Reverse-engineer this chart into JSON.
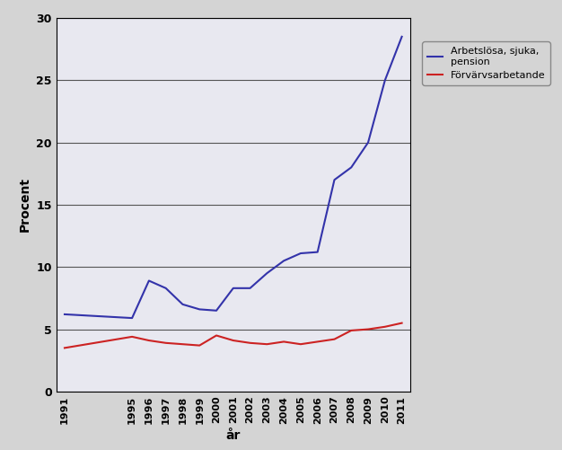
{
  "years": [
    1991,
    1995,
    1996,
    1997,
    1998,
    1999,
    2000,
    2001,
    2002,
    2003,
    2004,
    2005,
    2006,
    2007,
    2008,
    2009,
    2010,
    2011
  ],
  "arbetslosa": [
    6.2,
    5.9,
    8.9,
    8.3,
    7.0,
    6.6,
    6.5,
    8.3,
    8.3,
    9.5,
    10.5,
    11.1,
    11.2,
    17.0,
    18.0,
    20.0,
    25.0,
    28.5
  ],
  "forvarvsarbetande": [
    3.5,
    4.4,
    4.1,
    3.9,
    3.8,
    3.7,
    4.5,
    4.1,
    3.9,
    3.8,
    4.0,
    3.8,
    4.0,
    4.2,
    4.9,
    5.0,
    5.2,
    5.5
  ],
  "line1_color": "#3333AA",
  "line2_color": "#CC2222",
  "legend1": "Arbetslösa, sjuka,\npension",
  "legend2": "Förvärvsarbetande",
  "ylabel": "Procent",
  "xlabel": "år",
  "ylim": [
    0,
    30
  ],
  "yticks": [
    0,
    5,
    10,
    15,
    20,
    25,
    30
  ],
  "plot_bg_color": "#E8E8F0",
  "fig_bg_color": "#D4D4D4",
  "grid_color": "#555555"
}
